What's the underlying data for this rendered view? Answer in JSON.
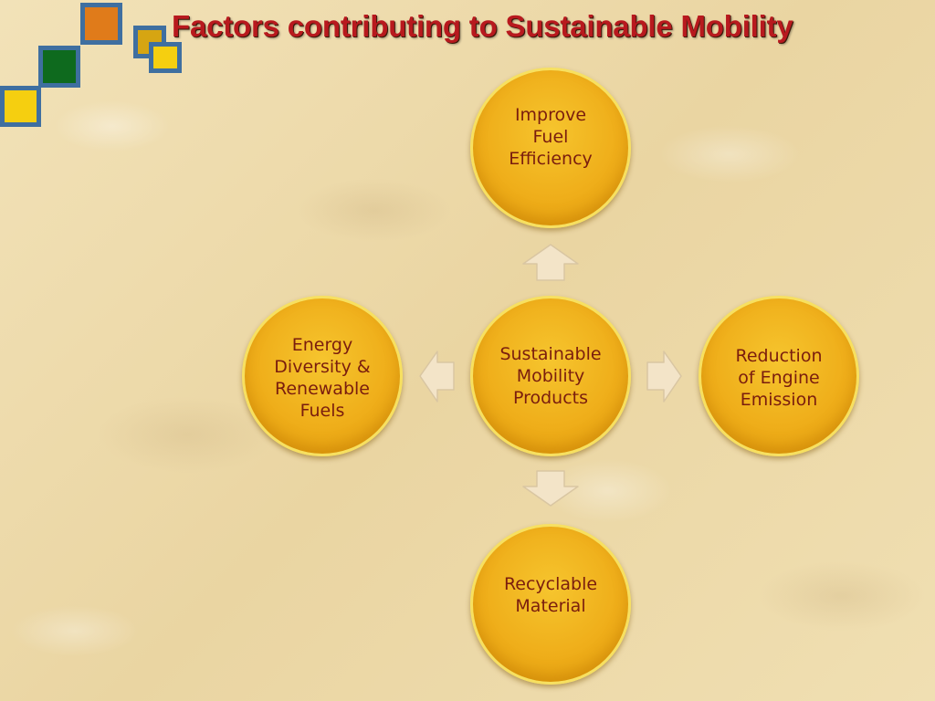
{
  "title": "Factors contributing to Sustainable Mobility",
  "diagram": {
    "center": "Sustainable\nMobility\nProducts",
    "top": "Improve\nFuel\nEfficiency",
    "right": "Reduction\nof Engine\nEmission",
    "bottom": "Recyclable\nMaterial",
    "left": "Energy\nDiversity &\nRenewable\nFuels"
  },
  "colors": {
    "title": "#b8191e",
    "node_fill": "#f2b41f",
    "node_text": "#7a1d0e",
    "arrow_fill": "#f3e4c8",
    "deco_orange": "#e07b1a",
    "deco_green": "#0e6a1e",
    "deco_yellow": "#f5cf10",
    "deco_blue": "#3f6fa0"
  }
}
